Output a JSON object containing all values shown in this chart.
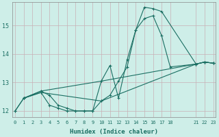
{
  "xlabel": "Humidex (Indice chaleur)",
  "bg_color": "#ceeee8",
  "line_color": "#1a6e62",
  "grid_color": "#c8b0b5",
  "line1_x": [
    0,
    1,
    3,
    4,
    5,
    6,
    7,
    8,
    9,
    10,
    11,
    12,
    13,
    14,
    15,
    16,
    17,
    21,
    22,
    23
  ],
  "line1_y": [
    12.0,
    12.45,
    12.65,
    12.2,
    12.1,
    12.0,
    12.0,
    12.0,
    12.0,
    12.35,
    12.55,
    13.05,
    13.55,
    14.85,
    15.65,
    15.6,
    15.5,
    13.65,
    13.72,
    13.68
  ],
  "line2_x": [
    0,
    1,
    3,
    4,
    5,
    6,
    7,
    8,
    9,
    10,
    11,
    12,
    13,
    14,
    15,
    16,
    17,
    18,
    21,
    22,
    23
  ],
  "line2_y": [
    12.0,
    12.45,
    12.7,
    12.55,
    12.2,
    12.1,
    12.0,
    12.0,
    12.0,
    13.05,
    13.6,
    12.45,
    13.8,
    14.85,
    15.25,
    15.35,
    14.65,
    13.55,
    13.65,
    13.72,
    13.68
  ],
  "line3_x": [
    1,
    3,
    10,
    21,
    22,
    23
  ],
  "line3_y": [
    12.45,
    12.7,
    13.05,
    13.65,
    13.72,
    13.68
  ],
  "line4_x": [
    1,
    3,
    10,
    21,
    22,
    23
  ],
  "line4_y": [
    12.45,
    12.65,
    12.35,
    13.65,
    13.72,
    13.68
  ],
  "xlim": [
    -0.3,
    23.3
  ],
  "ylim": [
    11.78,
    15.82
  ],
  "yticks": [
    12,
    13,
    14,
    15
  ],
  "xticks": [
    0,
    1,
    2,
    3,
    4,
    5,
    6,
    7,
    8,
    9,
    10,
    11,
    12,
    13,
    14,
    15,
    16,
    17,
    18,
    21,
    22,
    23
  ]
}
